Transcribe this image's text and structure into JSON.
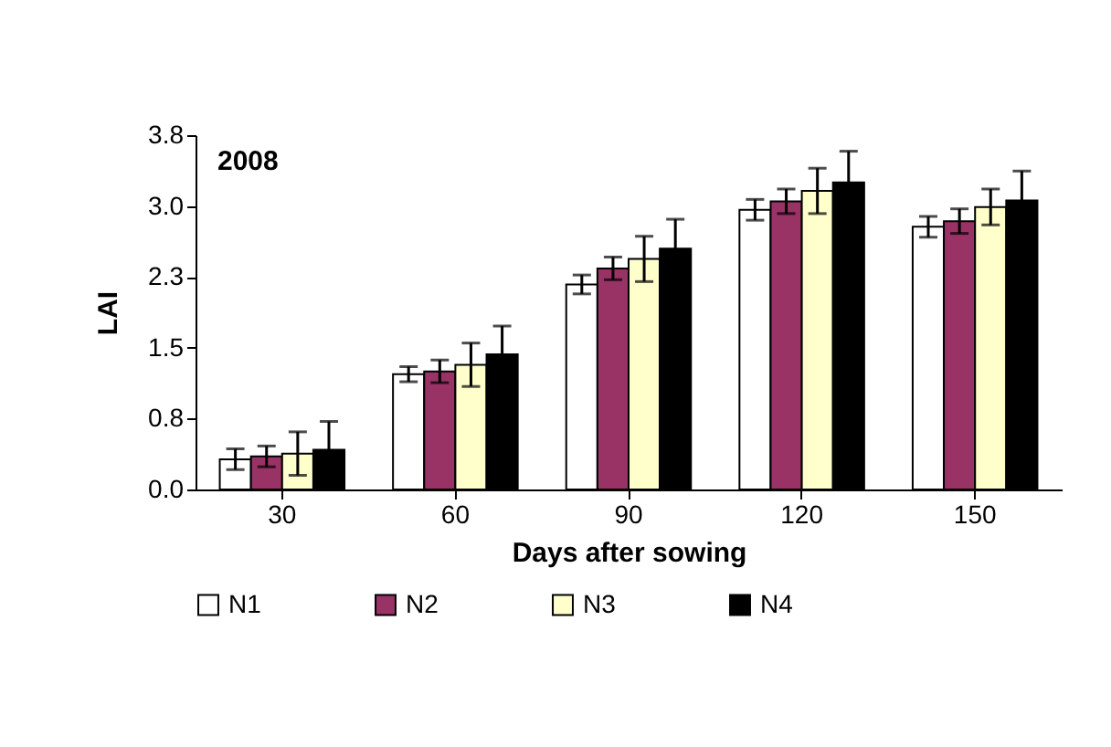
{
  "chart_data": {
    "type": "bar",
    "xlabel": "Days after sowing",
    "ylabel": "LAI",
    "annotations": [
      "2008"
    ],
    "categories": [
      "30",
      "60",
      "90",
      "120",
      "150"
    ],
    "ylim": [
      0,
      3.75
    ],
    "yticks": [
      {
        "value": 0,
        "label": "0.0"
      },
      {
        "value": 0.75,
        "label": "0.8"
      },
      {
        "value": 1.5,
        "label": "1.5"
      },
      {
        "value": 2.25,
        "label": "2.3"
      },
      {
        "value": 3,
        "label": "3.0"
      },
      {
        "value": 3.75,
        "label": "3.8"
      }
    ],
    "grid": false,
    "legend": "bottom",
    "series": [
      {
        "name": "N1",
        "color": "#ffffff",
        "values": [
          0.32,
          1.22,
          2.17,
          2.96,
          2.78
        ],
        "errors": [
          0.11,
          0.08,
          0.1,
          0.11,
          0.11
        ]
      },
      {
        "name": "N2",
        "color": "#993366",
        "values": [
          0.35,
          1.25,
          2.34,
          3.05,
          2.84
        ],
        "errors": [
          0.11,
          0.12,
          0.12,
          0.13,
          0.13
        ]
      },
      {
        "name": "N3",
        "color": "#ffffcc",
        "values": [
          0.38,
          1.32,
          2.44,
          3.16,
          2.99
        ],
        "errors": [
          0.23,
          0.23,
          0.24,
          0.24,
          0.19
        ]
      },
      {
        "name": "N4",
        "color": "#000000",
        "values": [
          0.42,
          1.43,
          2.55,
          3.25,
          3.06
        ],
        "errors": [
          0.3,
          0.3,
          0.31,
          0.33,
          0.31
        ]
      }
    ]
  }
}
